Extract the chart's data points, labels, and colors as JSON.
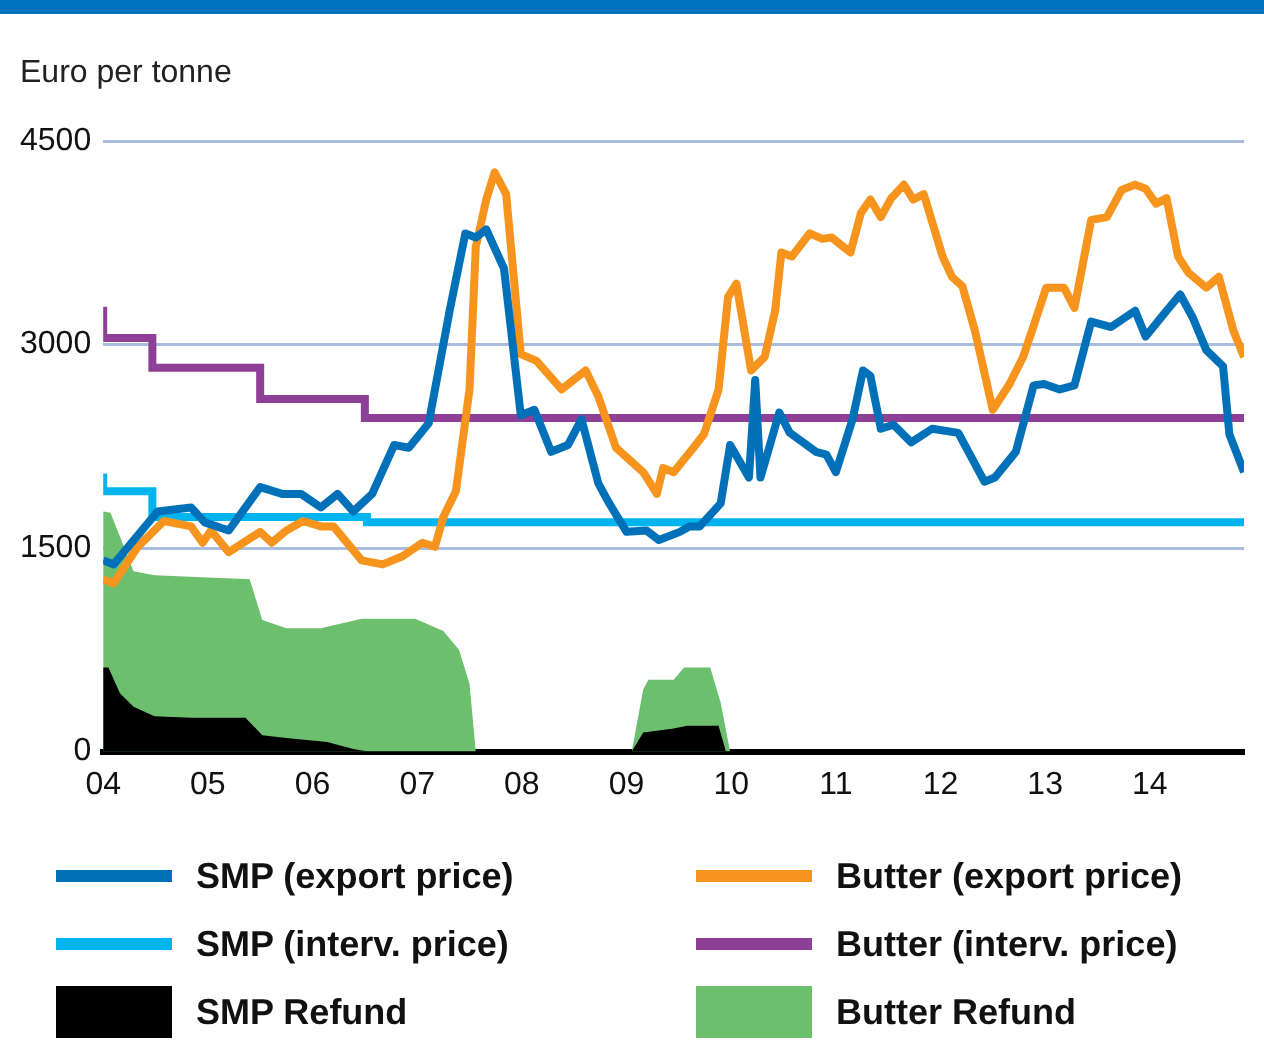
{
  "chart_data": {
    "type": "line",
    "ylabel": "Euro per tonne",
    "xlim": [
      2004,
      2014.9
    ],
    "ylim": [
      0,
      4500
    ],
    "yticks": [
      0,
      1500,
      3000,
      4500
    ],
    "xticks": [
      {
        "value": 2004,
        "label": "04"
      },
      {
        "value": 2005,
        "label": "05"
      },
      {
        "value": 2006,
        "label": "06"
      },
      {
        "value": 2007,
        "label": "07"
      },
      {
        "value": 2008,
        "label": "08"
      },
      {
        "value": 2009,
        "label": "09"
      },
      {
        "value": 2010,
        "label": "10"
      },
      {
        "value": 2011,
        "label": "11"
      },
      {
        "value": 2012,
        "label": "12"
      },
      {
        "value": 2013,
        "label": "13"
      },
      {
        "value": 2014,
        "label": "14"
      }
    ],
    "grid": "y",
    "legend": "bottom",
    "series": [
      {
        "name": "SMP (export price)",
        "color": "#0070b8",
        "type": "line",
        "x": [
          2004.0,
          2004.1,
          2004.52,
          2004.84,
          2004.97,
          2005.2,
          2005.5,
          2005.71,
          2005.89,
          2006.08,
          2006.24,
          2006.39,
          2006.57,
          2006.78,
          2006.92,
          2007.11,
          2007.31,
          2007.46,
          2007.56,
          2007.66,
          2007.83,
          2007.99,
          2008.12,
          2008.28,
          2008.44,
          2008.57,
          2008.73,
          2008.82,
          2009.0,
          2009.19,
          2009.31,
          2009.51,
          2009.6,
          2009.7,
          2009.9,
          2009.99,
          2010.17,
          2010.23,
          2010.28,
          2010.46,
          2010.56,
          2010.81,
          2010.91,
          2011.0,
          2011.16,
          2011.26,
          2011.33,
          2011.43,
          2011.55,
          2011.72,
          2011.92,
          2012.17,
          2012.42,
          2012.52,
          2012.72,
          2012.89,
          2012.99,
          2013.14,
          2013.28,
          2013.44,
          2013.63,
          2013.86,
          2013.96,
          2014.16,
          2014.29,
          2014.41,
          2014.54,
          2014.7,
          2014.76,
          2014.9
        ],
        "values": [
          1410,
          1380,
          1770,
          1800,
          1690,
          1630,
          1950,
          1900,
          1900,
          1800,
          1900,
          1770,
          1900,
          2260,
          2240,
          2420,
          3250,
          3820,
          3790,
          3850,
          3560,
          2480,
          2520,
          2210,
          2260,
          2450,
          1980,
          1850,
          1620,
          1630,
          1560,
          1620,
          1660,
          1660,
          1830,
          2260,
          2020,
          2740,
          2020,
          2500,
          2350,
          2210,
          2190,
          2060,
          2450,
          2810,
          2770,
          2380,
          2410,
          2280,
          2380,
          2350,
          1990,
          2020,
          2210,
          2700,
          2710,
          2670,
          2700,
          3170,
          3130,
          3250,
          3060,
          3250,
          3370,
          3200,
          2960,
          2840,
          2340,
          2060
        ]
      },
      {
        "name": "Butter (export price)",
        "color": "#f7941d",
        "type": "line",
        "x": [
          2004.0,
          2004.1,
          2004.33,
          2004.58,
          2004.84,
          2004.95,
          2005.03,
          2005.2,
          2005.5,
          2005.61,
          2005.75,
          2005.91,
          2006.08,
          2006.2,
          2006.47,
          2006.67,
          2006.86,
          2007.05,
          2007.17,
          2007.25,
          2007.37,
          2007.5,
          2007.56,
          2007.66,
          2007.74,
          2007.85,
          2007.99,
          2008.14,
          2008.38,
          2008.61,
          2008.73,
          2008.9,
          2009.16,
          2009.29,
          2009.35,
          2009.45,
          2009.64,
          2009.74,
          2009.88,
          2009.97,
          2010.05,
          2010.19,
          2010.32,
          2010.42,
          2010.48,
          2010.58,
          2010.75,
          2010.87,
          2010.96,
          2011.14,
          2011.24,
          2011.33,
          2011.43,
          2011.53,
          2011.65,
          2011.74,
          2011.84,
          2012.02,
          2012.11,
          2012.21,
          2012.33,
          2012.5,
          2012.66,
          2012.79,
          2012.89,
          2013.01,
          2013.18,
          2013.28,
          2013.44,
          2013.59,
          2013.73,
          2013.86,
          2013.96,
          2014.06,
          2014.16,
          2014.27,
          2014.37,
          2014.54,
          2014.66,
          2014.8,
          2014.9
        ],
        "values": [
          1270,
          1240,
          1510,
          1700,
          1660,
          1540,
          1630,
          1470,
          1620,
          1540,
          1630,
          1700,
          1660,
          1660,
          1410,
          1380,
          1440,
          1540,
          1510,
          1730,
          1920,
          2670,
          3720,
          4070,
          4270,
          4110,
          2930,
          2880,
          2670,
          2810,
          2620,
          2240,
          2060,
          1900,
          2090,
          2060,
          2240,
          2340,
          2670,
          3350,
          3450,
          2810,
          2910,
          3250,
          3680,
          3650,
          3820,
          3780,
          3790,
          3680,
          3970,
          4070,
          3940,
          4080,
          4180,
          4070,
          4110,
          3650,
          3500,
          3430,
          3100,
          2520,
          2710,
          2910,
          3140,
          3420,
          3420,
          3270,
          3920,
          3940,
          4140,
          4180,
          4150,
          4040,
          4080,
          3650,
          3530,
          3420,
          3500,
          3100,
          2910
        ]
      },
      {
        "name": "SMP (interv. price)",
        "color": "#00b4ef",
        "type": "step",
        "x": [
          2004.0,
          2004.47,
          2006.52,
          2008.85,
          2014.9
        ],
        "values": [
          2050,
          1920,
          1730,
          1690,
          1690
        ]
      },
      {
        "name": "Butter (interv. price)",
        "color": "#8e3f97",
        "type": "step",
        "x": [
          2004.0,
          2004.47,
          2005.5,
          2006.5,
          2007.55,
          2014.9
        ],
        "values": [
          3280,
          3050,
          2830,
          2600,
          2460,
          2460
        ]
      },
      {
        "name": "SMP Refund",
        "color": "#000000",
        "type": "area",
        "x": [
          2004.0,
          2004.05,
          2004.16,
          2004.29,
          2004.49,
          2004.84,
          2005.36,
          2005.52,
          2005.75,
          2006.14,
          2006.39,
          2006.53,
          2009.05,
          2009.16,
          2009.45,
          2009.58,
          2009.88,
          2009.95
        ],
        "values": [
          620,
          620,
          430,
          330,
          260,
          250,
          250,
          120,
          100,
          70,
          20,
          0,
          0,
          140,
          170,
          190,
          190,
          0
        ]
      },
      {
        "name": "Butter Refund",
        "color": "#6cbf6c",
        "type": "area",
        "x": [
          2004.0,
          2004.07,
          2004.29,
          2004.49,
          2005.4,
          2005.52,
          2005.75,
          2006.08,
          2006.47,
          2006.98,
          2007.25,
          2007.4,
          2007.5,
          2007.56,
          2009.05,
          2009.16,
          2009.21,
          2009.45,
          2009.55,
          2009.8,
          2009.9,
          2009.99
        ],
        "values": [
          1770,
          1760,
          1330,
          1300,
          1270,
          970,
          910,
          910,
          980,
          980,
          890,
          750,
          500,
          0,
          0,
          460,
          530,
          530,
          620,
          620,
          360,
          0
        ]
      }
    ]
  }
}
